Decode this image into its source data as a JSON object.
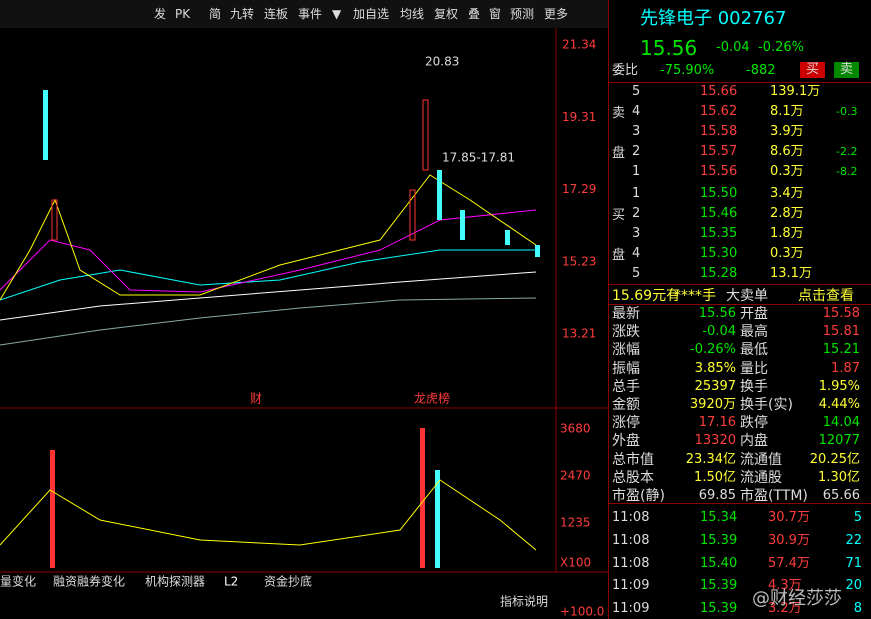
{
  "toolbar": [
    "发",
    "PK",
    "简",
    "九转",
    "连板",
    "事件",
    "▼",
    "加自选",
    "均线",
    "复权",
    "叠",
    "窗",
    "预测",
    "更多"
  ],
  "quote": {
    "name": "先锋电子 002767",
    "price": "15.56",
    "change": "-0.04",
    "pct": "-0.26%"
  },
  "ratio": {
    "label": "委比",
    "pct": "-75.90%",
    "diff": "-882",
    "buy": "买",
    "sell": "卖"
  },
  "sell_side": {
    "labels": [
      "卖",
      "盘"
    ],
    "rows": [
      {
        "level": "5",
        "price": "15.66",
        "volume": "139.1万"
      },
      {
        "level": "4",
        "price": "15.62",
        "volume": "8.1万",
        "delta": "-0.3"
      },
      {
        "level": "3",
        "price": "15.58",
        "volume": "3.9万"
      },
      {
        "level": "2",
        "price": "15.57",
        "volume": "8.6万",
        "delta": "-2.2"
      },
      {
        "level": "1",
        "price": "15.56",
        "volume": "0.3万",
        "delta": "-8.2"
      }
    ]
  },
  "buy_side": {
    "labels": [
      "买",
      "盘"
    ],
    "rows": [
      {
        "level": "1",
        "price": "15.50",
        "volume": "3.4万"
      },
      {
        "level": "2",
        "price": "15.46",
        "volume": "2.8万"
      },
      {
        "level": "3",
        "price": "15.35",
        "volume": "1.8万"
      },
      {
        "level": "4",
        "price": "15.30",
        "volume": "0.3万"
      },
      {
        "level": "5",
        "price": "15.28",
        "volume": "13.1万"
      }
    ]
  },
  "big_order": [
    "15.69元有",
    "****手",
    "大卖单",
    "点击查看"
  ],
  "stats": [
    [
      "最新",
      "15.56",
      "开盘",
      "15.58"
    ],
    [
      "涨跌",
      "-0.04",
      "最高",
      "15.81"
    ],
    [
      "涨幅",
      "-0.26%",
      "最低",
      "15.21"
    ],
    [
      "振幅",
      "3.85%",
      "量比",
      "1.87"
    ],
    [
      "总手",
      "25397",
      "换手",
      "1.95%"
    ],
    [
      "金额",
      "3920万",
      "换手(实)",
      "4.44%"
    ],
    [
      "涨停",
      "17.16",
      "跌停",
      "14.04"
    ],
    [
      "外盘",
      "13320",
      "内盘",
      "12077"
    ],
    [
      "总市值",
      "23.34亿",
      "流通值",
      "20.25亿"
    ],
    [
      "总股本",
      "1.50亿",
      "流通股",
      "1.30亿"
    ],
    [
      "市盈(静)",
      "69.85",
      "市盈(TTM)",
      "65.66"
    ]
  ],
  "ticks": [
    [
      "11:08",
      "15.34",
      "30.7万",
      "5"
    ],
    [
      "11:08",
      "15.39",
      "30.9万",
      "22"
    ],
    [
      "11:08",
      "15.40",
      "57.4万",
      "71"
    ],
    [
      "11:09",
      "15.39",
      "4.3万",
      "20"
    ],
    [
      "11:09",
      "15.39",
      "3.2万",
      "8"
    ]
  ],
  "chart": {
    "price_axis": [
      "21.34",
      "19.31",
      "17.29",
      "15.23",
      "13.21"
    ],
    "high_label": "20.83",
    "range_label": "17.85-17.81",
    "events": [
      "财",
      "龙虎榜"
    ],
    "volume_axis": [
      "3680",
      "2470",
      "1235",
      "X100"
    ]
  },
  "tabs": [
    "量变化",
    "融资融券变化",
    "机构探测器",
    "L2",
    "资金抄底"
  ],
  "help": "指标说明",
  "bottom_axis": "+100.0",
  "watermark": "@财经莎莎"
}
